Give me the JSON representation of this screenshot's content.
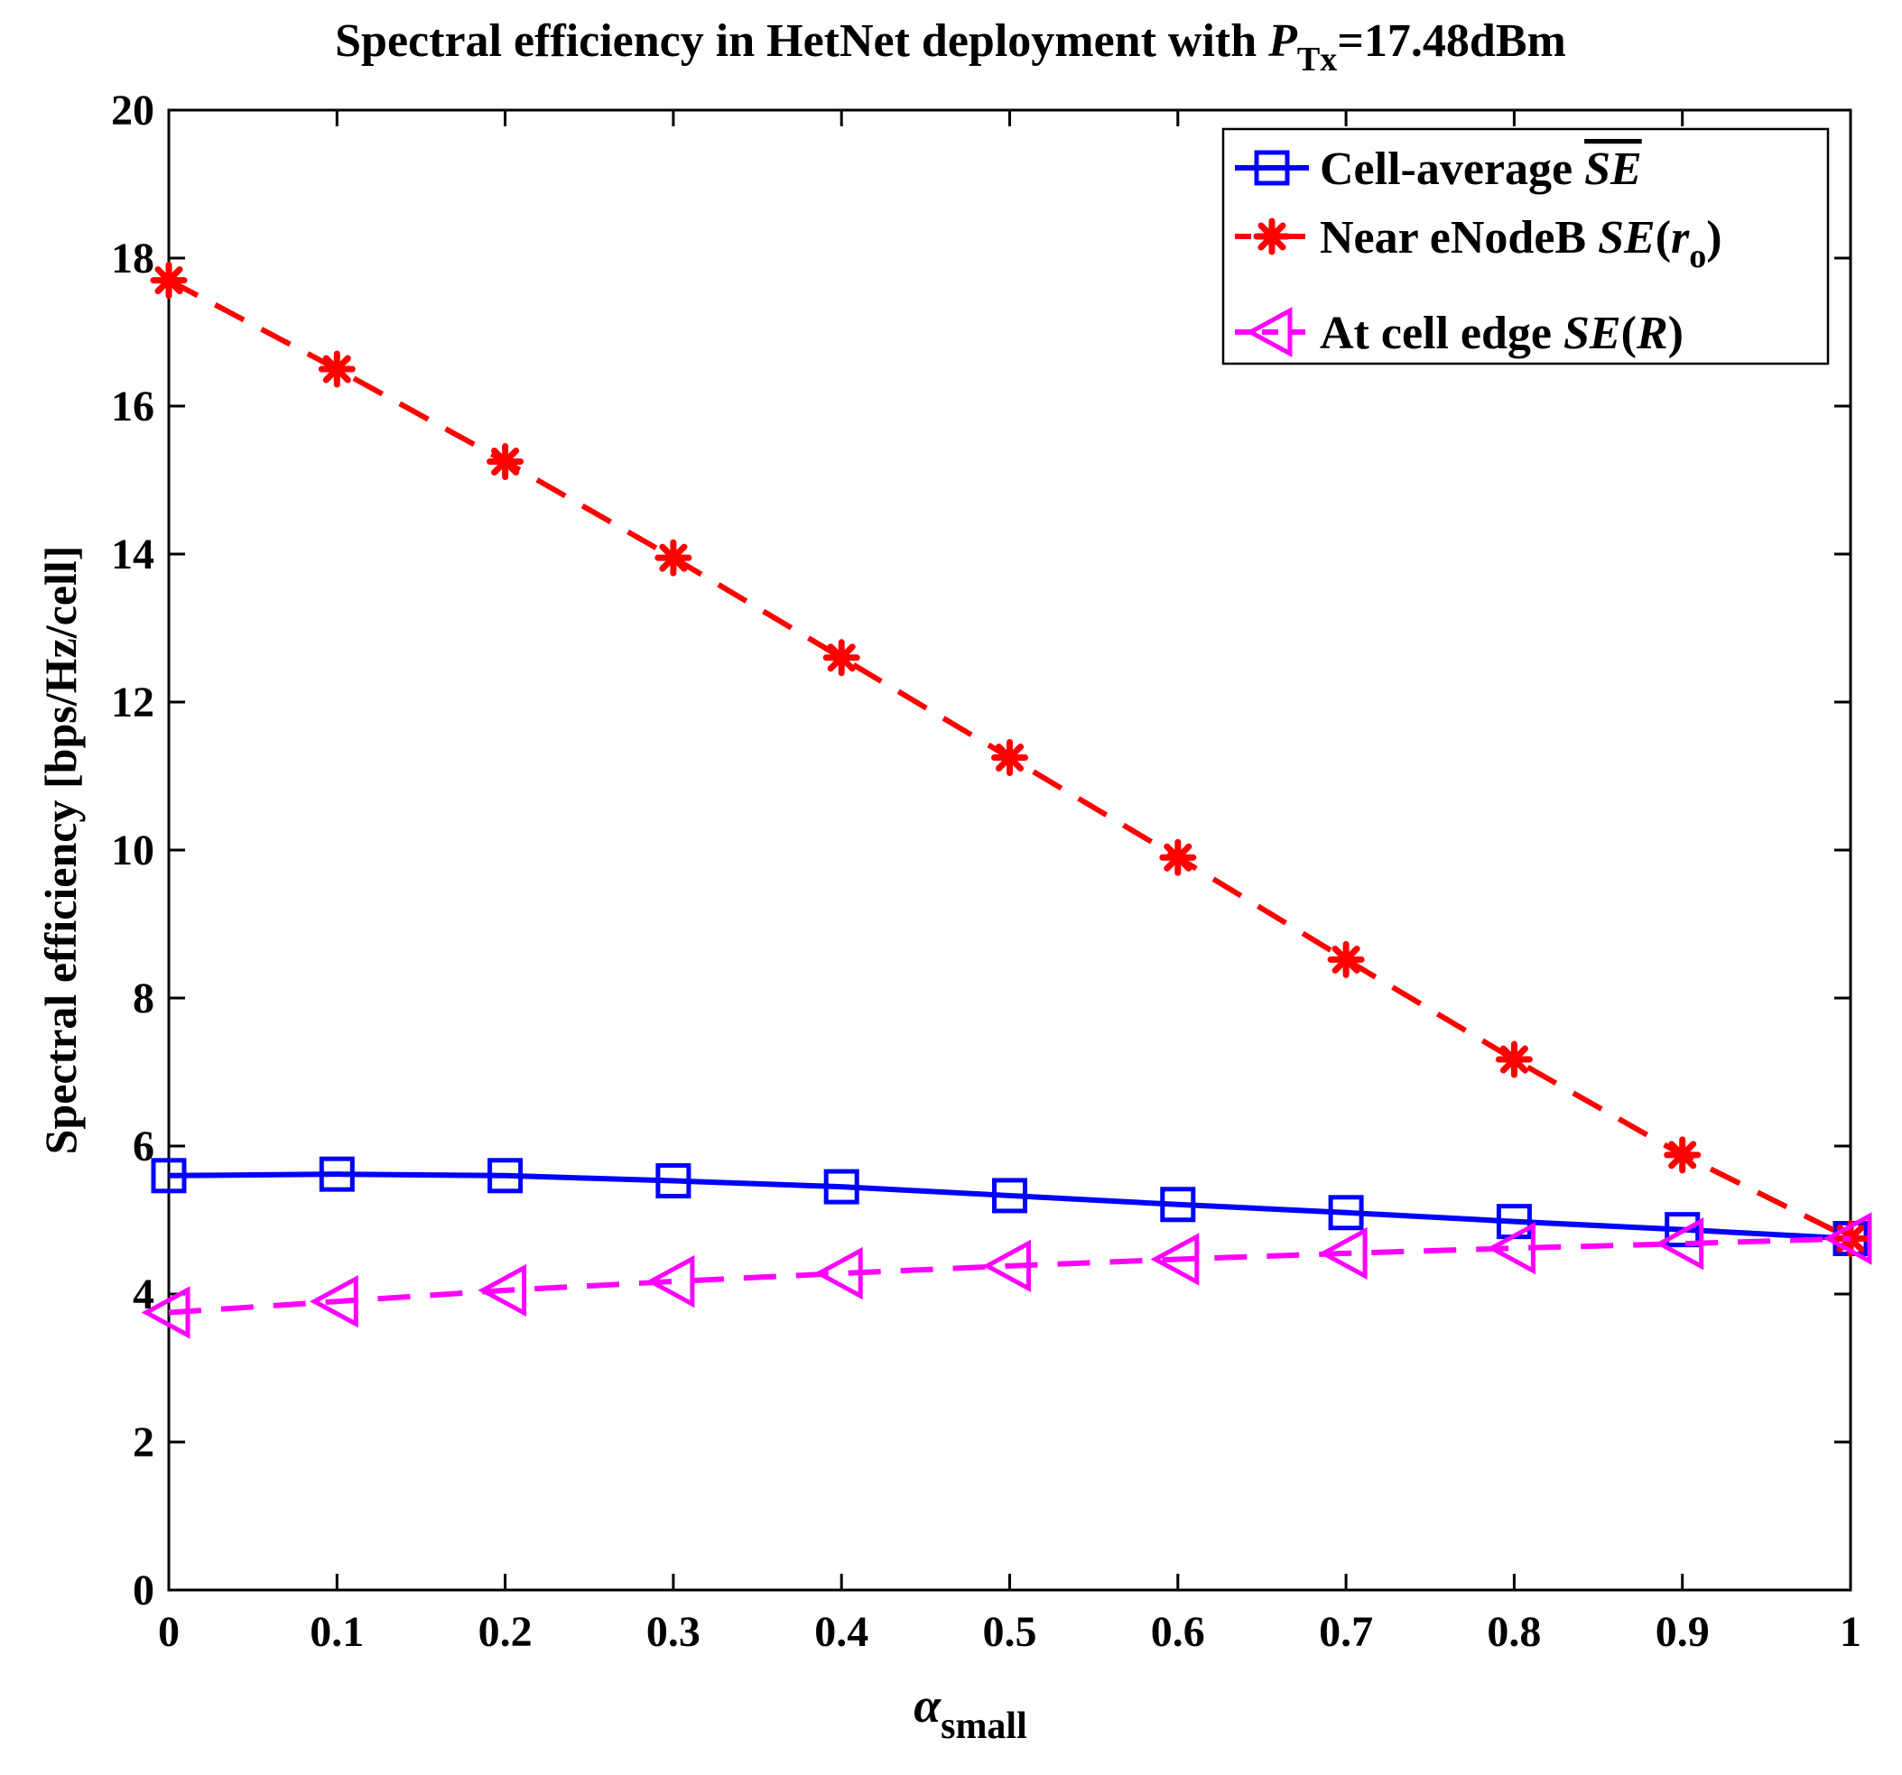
{
  "chart_data": {
    "type": "line",
    "title_main": "Spectral efficiency in HetNet deployment with ",
    "title_sym": "P",
    "title_sub": "Tx",
    "title_tail": "=17.48dBm",
    "xlabel_sym": "α",
    "xlabel_sub": "small",
    "ylabel": "Spectral efficiency [bps/Hz/cell]",
    "xlim": [
      0,
      1
    ],
    "ylim": [
      0,
      20
    ],
    "grid": false,
    "legend_position": "top-right",
    "x": [
      0,
      0.1,
      0.2,
      0.3,
      0.4,
      0.5,
      0.6,
      0.7,
      0.8,
      0.9,
      1
    ],
    "x_ticks": [
      "0",
      "0.1",
      "0.2",
      "0.3",
      "0.4",
      "0.5",
      "0.6",
      "0.7",
      "0.8",
      "0.9",
      "1"
    ],
    "y_ticks": [
      "0",
      "2",
      "4",
      "6",
      "8",
      "10",
      "12",
      "14",
      "16",
      "18",
      "20"
    ],
    "series": [
      {
        "name": "Cell-average",
        "legend_text": "Cell-average ",
        "legend_sym": "SE",
        "legend_sym_overline": true,
        "color": "#0000ff",
        "dash": "solid",
        "marker": "square",
        "values": [
          5.6,
          5.62,
          5.6,
          5.53,
          5.45,
          5.33,
          5.21,
          5.1,
          4.98,
          4.87,
          4.75
        ]
      },
      {
        "name": "Near eNodeB",
        "legend_text": "Near eNodeB ",
        "legend_sym": "SE",
        "legend_paren_open": "(",
        "legend_arg": "r",
        "legend_arg_sub": "o",
        "legend_paren_close": ")",
        "color": "#ff0000",
        "dash": "dashed",
        "marker": "asterisk",
        "values": [
          17.7,
          16.5,
          15.25,
          13.95,
          12.6,
          11.25,
          9.9,
          8.52,
          7.17,
          5.88,
          4.75
        ]
      },
      {
        "name": "At cell edge",
        "legend_text": "At cell edge ",
        "legend_sym": "SE",
        "legend_paren_open": "(",
        "legend_arg": "R",
        "legend_paren_close": ")",
        "color": "#ff00ff",
        "dash": "dashed",
        "marker": "triangle-left",
        "values": [
          3.75,
          3.9,
          4.05,
          4.17,
          4.28,
          4.38,
          4.47,
          4.55,
          4.62,
          4.68,
          4.75
        ]
      }
    ]
  }
}
